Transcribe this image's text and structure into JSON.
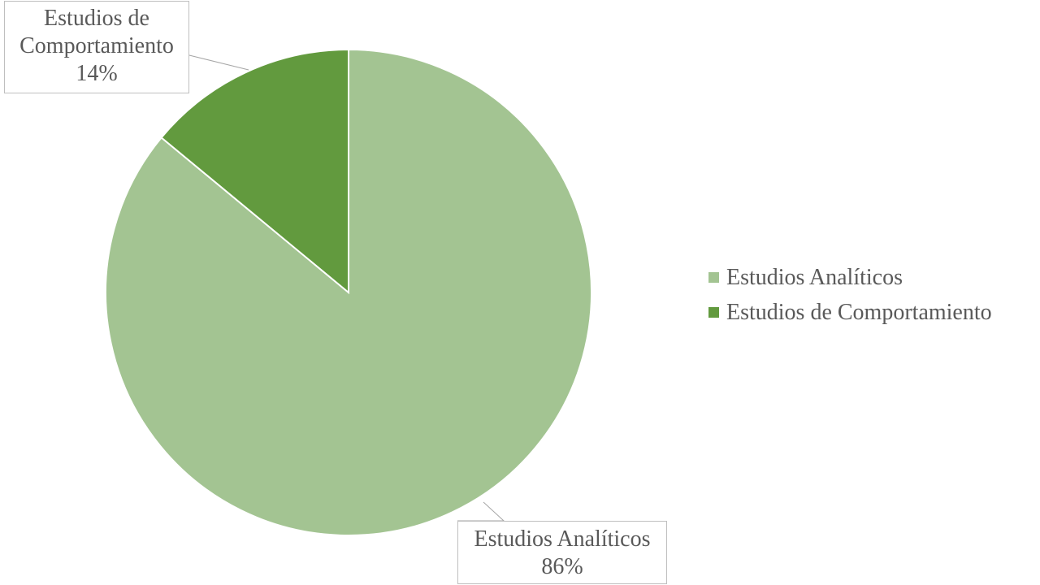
{
  "chart_data": {
    "type": "pie",
    "title": "",
    "series": [
      {
        "values": [
          86,
          14
        ],
        "labels": [
          "Estudios Analíticos",
          "Estudios de Comportamiento"
        ],
        "colors": [
          "#a3c492",
          "#629a3e"
        ],
        "percent_labels": [
          "86%",
          "14%"
        ]
      }
    ],
    "legend_placement": "right"
  },
  "labels": {
    "comportamiento": {
      "line1": "Estudios de",
      "line2": "Comportamiento",
      "percent": "14%"
    },
    "analiticos": {
      "line1": "Estudios Analíticos",
      "percent": "86%"
    }
  },
  "legend": {
    "items": [
      {
        "label": "Estudios Analíticos",
        "color": "#a3c492"
      },
      {
        "label": "Estudios de Comportamiento",
        "color": "#629a3e"
      }
    ]
  }
}
